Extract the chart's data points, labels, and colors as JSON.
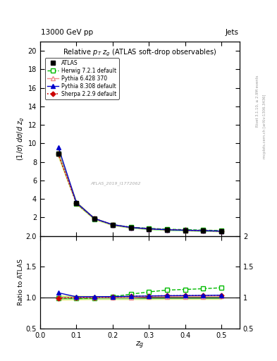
{
  "title": "Relative $p_T$ $z_g$ (ATLAS soft-drop observables)",
  "top_left_label": "13000 GeV pp",
  "top_right_label": "Jets",
  "ylabel_main": "$(1/\\sigma)$ $d\\sigma/d$ $z_g$",
  "ylabel_ratio": "Ratio to ATLAS",
  "xlabel": "$z_g$",
  "watermark": "ATLAS_2019_I1772062",
  "right_label_top": "Rivet 3.1.10, ≥ 2.9M events",
  "right_label_bot": "mcplots.cern.ch [arXiv:1306.3436]",
  "ylim_main": [
    0,
    21
  ],
  "ylim_ratio": [
    0.5,
    2.0
  ],
  "yticks_main": [
    2,
    4,
    6,
    8,
    10,
    12,
    14,
    16,
    18,
    20
  ],
  "yticks_ratio": [
    0.5,
    1.0,
    1.5,
    2.0
  ],
  "xlim": [
    0.0,
    0.55
  ],
  "xg_values": [
    0.05,
    0.1,
    0.15,
    0.2,
    0.25,
    0.3,
    0.35,
    0.4,
    0.45,
    0.5
  ],
  "atlas_data": [
    8.9,
    3.55,
    1.85,
    1.2,
    0.9,
    0.75,
    0.65,
    0.6,
    0.55,
    0.5
  ],
  "atlas_err": [
    0.15,
    0.08,
    0.05,
    0.04,
    0.03,
    0.03,
    0.02,
    0.02,
    0.02,
    0.02
  ],
  "herwig_data": [
    8.85,
    3.5,
    1.83,
    1.22,
    0.95,
    0.82,
    0.73,
    0.68,
    0.63,
    0.58
  ],
  "pythia6_data": [
    8.9,
    3.55,
    1.85,
    1.2,
    0.9,
    0.76,
    0.66,
    0.61,
    0.56,
    0.51
  ],
  "pythia8_data": [
    9.6,
    3.6,
    1.88,
    1.22,
    0.92,
    0.77,
    0.67,
    0.62,
    0.57,
    0.52
  ],
  "sherpa_data": [
    8.85,
    3.55,
    1.86,
    1.21,
    0.92,
    0.77,
    0.67,
    0.62,
    0.57,
    0.52
  ],
  "herwig_ratio": [
    0.994,
    0.985,
    0.989,
    1.017,
    1.056,
    1.093,
    1.123,
    1.133,
    1.145,
    1.16
  ],
  "pythia6_ratio": [
    1.0,
    1.0,
    1.0,
    1.0,
    1.0,
    1.013,
    1.015,
    1.017,
    1.018,
    1.02
  ],
  "pythia8_ratio": [
    1.079,
    1.014,
    1.016,
    1.017,
    1.022,
    1.027,
    1.031,
    1.033,
    1.036,
    1.04
  ],
  "sherpa_ratio": [
    0.994,
    1.0,
    1.005,
    1.008,
    1.022,
    1.027,
    1.031,
    1.033,
    1.036,
    1.04
  ],
  "atlas_band_lo": [
    0.965,
    0.97,
    0.975,
    0.975,
    0.975,
    0.975,
    0.978,
    0.978,
    0.978,
    0.978
  ],
  "atlas_band_hi": [
    1.035,
    1.03,
    1.025,
    1.025,
    1.025,
    1.025,
    1.022,
    1.022,
    1.022,
    1.022
  ],
  "atlas_inner_lo": [
    0.983,
    0.986,
    0.988,
    0.988,
    0.988,
    0.988,
    0.99,
    0.99,
    0.99,
    0.99
  ],
  "atlas_inner_hi": [
    1.017,
    1.014,
    1.012,
    1.012,
    1.012,
    1.012,
    1.01,
    1.01,
    1.01,
    1.01
  ],
  "color_atlas": "#000000",
  "color_herwig": "#00bb00",
  "color_pythia6": "#ee8888",
  "color_pythia8": "#0000cc",
  "color_sherpa": "#cc0000",
  "color_band_yellow": "#eeee88",
  "color_band_green": "#88ee88"
}
